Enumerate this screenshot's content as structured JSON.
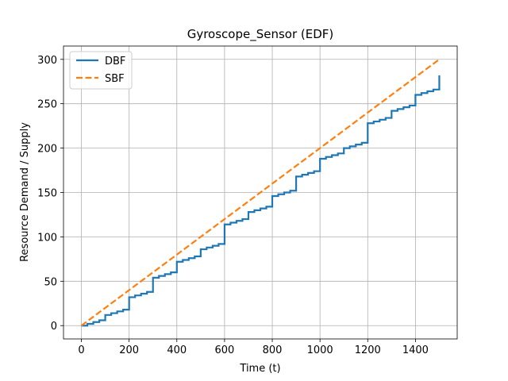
{
  "chart_data": {
    "type": "line",
    "title": "Gyroscope_Sensor (EDF)",
    "xlabel": "Time (t)",
    "ylabel": "Resource Demand / Supply",
    "xlim": [
      -75,
      1575
    ],
    "ylim": [
      -15,
      315
    ],
    "xticks": [
      0,
      200,
      400,
      600,
      800,
      1000,
      1200,
      1400
    ],
    "yticks": [
      0,
      50,
      100,
      150,
      200,
      250,
      300
    ],
    "grid": true,
    "legend_position": "top-left",
    "series": [
      {
        "name": "DBF",
        "style": "step",
        "color": "#1f77b4",
        "dash": "solid",
        "x": [
          0,
          25,
          50,
          75,
          100,
          125,
          150,
          175,
          200,
          225,
          250,
          275,
          300,
          325,
          350,
          375,
          400,
          425,
          450,
          475,
          500,
          525,
          550,
          575,
          600,
          625,
          650,
          675,
          700,
          725,
          750,
          775,
          800,
          825,
          850,
          875,
          900,
          925,
          950,
          975,
          1000,
          1025,
          1050,
          1075,
          1100,
          1125,
          1150,
          1175,
          1200,
          1225,
          1250,
          1275,
          1300,
          1325,
          1350,
          1375,
          1400,
          1425,
          1450,
          1475,
          1500
        ],
        "y": [
          0,
          2,
          4,
          6,
          12,
          14,
          16,
          18,
          32,
          34,
          36,
          38,
          54,
          56,
          58,
          60,
          72,
          74,
          76,
          78,
          86,
          88,
          90,
          92,
          114,
          116,
          118,
          120,
          128,
          130,
          132,
          134,
          146,
          148,
          150,
          152,
          168,
          170,
          172,
          174,
          188,
          190,
          192,
          194,
          200,
          202,
          204,
          206,
          228,
          230,
          232,
          234,
          242,
          244,
          246,
          248,
          260,
          262,
          264,
          266,
          282
        ]
      },
      {
        "name": "SBF",
        "style": "line",
        "color": "#ff7f0e",
        "dash": "dashed",
        "x": [
          0,
          1500
        ],
        "y": [
          0,
          300
        ]
      }
    ]
  }
}
